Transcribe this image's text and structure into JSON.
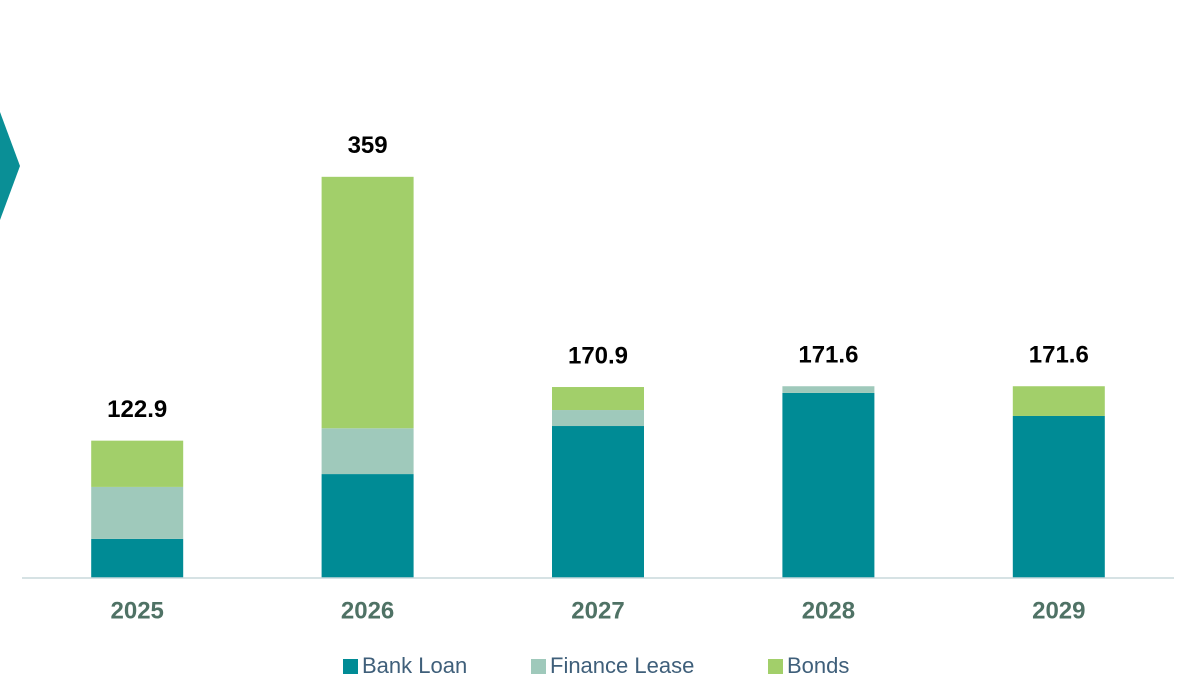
{
  "chart_data": {
    "type": "stacked_bar",
    "categories": [
      "2025",
      "2026",
      "2027",
      "2028",
      "2029"
    ],
    "series": [
      {
        "name": "Bank Loan",
        "color": "#008b95",
        "values": [
          35,
          93,
          136,
          165.6,
          145
        ]
      },
      {
        "name": "Finance Lease",
        "color": "#9fc9bb",
        "values": [
          46.5,
          41,
          14.3,
          6,
          0
        ]
      },
      {
        "name": "Bonds",
        "color": "#a2cf6a",
        "values": [
          41.4,
          225,
          20.6,
          0,
          26.6
        ]
      }
    ],
    "totals": [
      122.9,
      359,
      170.9,
      171.6,
      171.6
    ],
    "ylim": [
      0,
      400
    ],
    "legend": "bottom"
  }
}
